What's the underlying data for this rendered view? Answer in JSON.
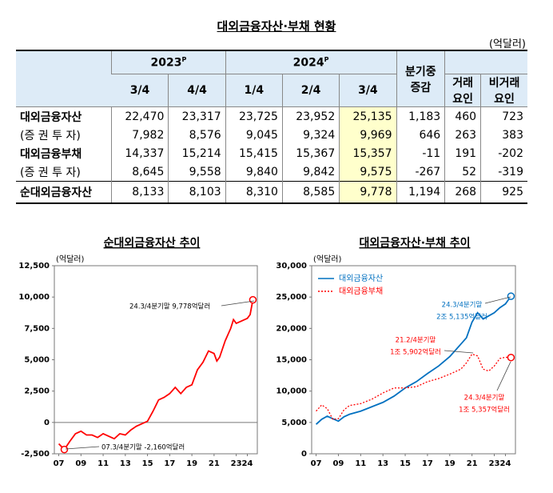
{
  "table": {
    "title": "대외금융자산·부채 현황",
    "unit": "(억달러)",
    "years": [
      {
        "text": "2023",
        "sup": "P"
      },
      {
        "text": "2024",
        "sup": "P"
      }
    ],
    "quarters": [
      "3/4",
      "4/4",
      "1/4",
      "2/4",
      "3/4"
    ],
    "change": [
      "분기중",
      "증감"
    ],
    "factors": [
      [
        "거래",
        "요인"
      ],
      [
        "비거래",
        "요인"
      ]
    ],
    "rows": [
      [
        "대외금융자산",
        "22,470",
        "23,317",
        "23,725",
        "23,952",
        "25,135",
        "1,183",
        "460",
        "723"
      ],
      [
        "(증 권 투 자)",
        "7,982",
        "8,576",
        "9,045",
        "9,324",
        "9,969",
        "646",
        "263",
        "383"
      ],
      [
        "대외금융부채",
        "14,337",
        "15,214",
        "15,415",
        "15,367",
        "15,357",
        "-11",
        "191",
        "-202"
      ],
      [
        "(증 권 투 자)",
        "8,645",
        "9,558",
        "9,840",
        "9,842",
        "9,575",
        "-267",
        "52",
        "-319"
      ],
      [
        "순대외금융자산",
        "8,133",
        "8,103",
        "8,310",
        "8,585",
        "9,778",
        "1,194",
        "268",
        "925"
      ]
    ]
  },
  "chart_data": [
    {
      "type": "line",
      "title": "순대외금융자산 추이",
      "unit": "(억달러)",
      "color": "#ff0000",
      "x": [
        2007.0,
        2007.5,
        2008.0,
        2008.5,
        2009.0,
        2009.5,
        2010.0,
        2010.5,
        2011.0,
        2011.5,
        2012.0,
        2012.5,
        2013.0,
        2013.5,
        2014.0,
        2014.5,
        2015.0,
        2015.5,
        2016.0,
        2016.5,
        2017.0,
        2017.5,
        2018.0,
        2018.5,
        2019.0,
        2019.5,
        2020.0,
        2020.5,
        2021.0,
        2021.25,
        2021.5,
        2022.0,
        2022.5,
        2022.75,
        2023.0,
        2023.5,
        2024.0,
        2024.25,
        2024.5
      ],
      "values": [
        -1700,
        -2160,
        -1500,
        -900,
        -700,
        -1000,
        -1000,
        -1200,
        -900,
        -1100,
        -1300,
        -900,
        -1000,
        -600,
        -300,
        -100,
        100,
        900,
        1800,
        2000,
        2300,
        2800,
        2300,
        2800,
        3000,
        4200,
        4800,
        5700,
        5500,
        4900,
        5200,
        6500,
        7500,
        8200,
        7900,
        8100,
        8300,
        8600,
        9778
      ],
      "xlim": [
        2006.6,
        2024.9
      ],
      "xticks": [
        {
          "value": 2007,
          "label": "07"
        },
        {
          "value": 2009,
          "label": "09"
        },
        {
          "value": 2011,
          "label": "11"
        },
        {
          "value": 2013,
          "label": "13"
        },
        {
          "value": 2015,
          "label": "15"
        },
        {
          "value": 2017,
          "label": "17"
        },
        {
          "value": 2019,
          "label": "19"
        },
        {
          "value": 2021,
          "label": "21"
        },
        {
          "value": 2023,
          "label": "23"
        },
        {
          "value": 2024,
          "label": "24"
        }
      ],
      "ylim": [
        -2500,
        12500
      ],
      "yticks": [
        {
          "value": -2500,
          "label": "-2,500"
        },
        0,
        {
          "value": 2500,
          "label": "2,500"
        },
        {
          "value": 5000,
          "label": "5,000"
        },
        {
          "value": 7500,
          "label": "7,500"
        },
        {
          "value": 10000,
          "label": "10,000"
        },
        {
          "value": 12500,
          "label": "12,500"
        }
      ],
      "annotations": [
        "24.3/4분기말 9,778억달러",
        "07.3/4분기말 -2,160억달러"
      ]
    },
    {
      "type": "line",
      "title": "대외금융자산·부채 추이",
      "unit": "(억달러)",
      "legend": "upper left",
      "x": [
        2007.0,
        2007.5,
        2008.0,
        2008.5,
        2009.0,
        2009.5,
        2010.0,
        2011.0,
        2012.0,
        2013.0,
        2014.0,
        2015.0,
        2016.0,
        2017.0,
        2018.0,
        2019.0,
        2020.0,
        2020.5,
        2021.0,
        2021.5,
        2022.0,
        2022.5,
        2023.0,
        2023.5,
        2024.0,
        2024.5
      ],
      "series": [
        {
          "name": "대외금융자산",
          "color": "#0070c0",
          "dash": "solid",
          "values": [
            4700,
            5500,
            6000,
            5600,
            5200,
            5900,
            6300,
            6800,
            7500,
            8200,
            9200,
            10500,
            11500,
            12800,
            14000,
            15500,
            17500,
            18500,
            21000,
            22500,
            21500,
            22000,
            22500,
            23300,
            23900,
            25135
          ]
        },
        {
          "name": "대외금융부채",
          "color": "#ff0000",
          "dash": "dotted",
          "values": [
            6800,
            7800,
            7200,
            5500,
            5600,
            7000,
            7700,
            8000,
            8700,
            9700,
            10500,
            10500,
            10700,
            11500,
            12000,
            12700,
            13500,
            14500,
            15902,
            15600,
            13500,
            13200,
            14000,
            15200,
            15400,
            15357
          ]
        }
      ],
      "xlim": [
        2006.6,
        2024.9
      ],
      "xticks": [
        {
          "value": 2007,
          "label": "07"
        },
        {
          "value": 2009,
          "label": "09"
        },
        {
          "value": 2011,
          "label": "11"
        },
        {
          "value": 2013,
          "label": "13"
        },
        {
          "value": 2015,
          "label": "15"
        },
        {
          "value": 2017,
          "label": "17"
        },
        {
          "value": 2019,
          "label": "19"
        },
        {
          "value": 2021,
          "label": "21"
        },
        {
          "value": 2023,
          "label": "23"
        },
        {
          "value": 2024,
          "label": "24"
        }
      ],
      "ylim": [
        0,
        30000
      ],
      "yticks": [
        0,
        {
          "value": 5000,
          "label": "5,000"
        },
        {
          "value": 10000,
          "label": "10,000"
        },
        {
          "value": 15000,
          "label": "15,000"
        },
        {
          "value": 20000,
          "label": "20,000"
        },
        {
          "value": 25000,
          "label": "25,000"
        },
        {
          "value": 30000,
          "label": "30,000"
        }
      ],
      "annotations": [
        "24.3/4분기말",
        "2조 5,135억달러",
        "21.2/4분기말",
        "1조 5,902억달러",
        "24.3/4분기말",
        "1조 5,357억달러"
      ]
    }
  ]
}
